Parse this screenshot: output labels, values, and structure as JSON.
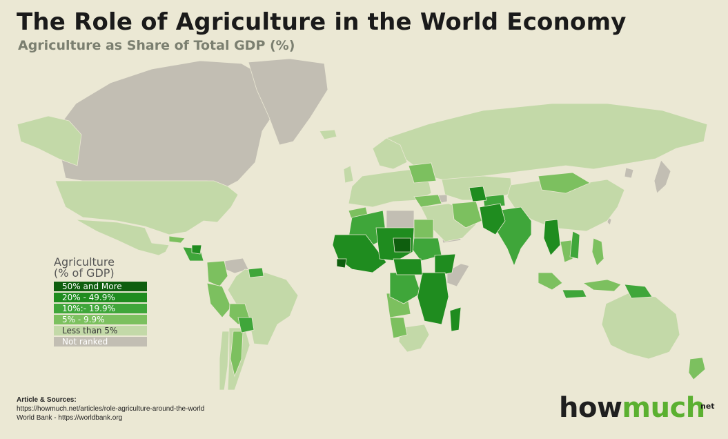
{
  "title": "The Role of Agriculture in the World Economy",
  "subtitle": "Agriculture as Share of Total GDP (%)",
  "legend": {
    "title_line1": "Agriculture",
    "title_line2": "(% of GDP)",
    "items": [
      {
        "label": "50% and More",
        "color": "#0e5e0e"
      },
      {
        "label": "20% - 49.9%",
        "color": "#1f8c1f"
      },
      {
        "label": "10%:- 19.9%",
        "color": "#3fa63a"
      },
      {
        "label": "5% - 9.9%",
        "color": "#7cc05f"
      },
      {
        "label": "Less than 5%",
        "color": "#c3d9a8"
      },
      {
        "label": "Not ranked",
        "color": "#c2beb3"
      }
    ]
  },
  "sources": {
    "title": "Article & Sources:",
    "line1": "https://howmuch.net/articles/role-agriculture-around-the-world",
    "line2": "World Bank - https://worldbank.org"
  },
  "logo": {
    "part1": "how",
    "part2": "much",
    "suffix": "net"
  },
  "colors": {
    "background": "#ebe8d4",
    "not_ranked": "#c2beb3",
    "lt5": "#c3d9a8",
    "c5_10": "#7cc05f",
    "c10_20": "#3fa63a",
    "c20_50": "#1f8c1f",
    "c50": "#0e5e0e"
  }
}
